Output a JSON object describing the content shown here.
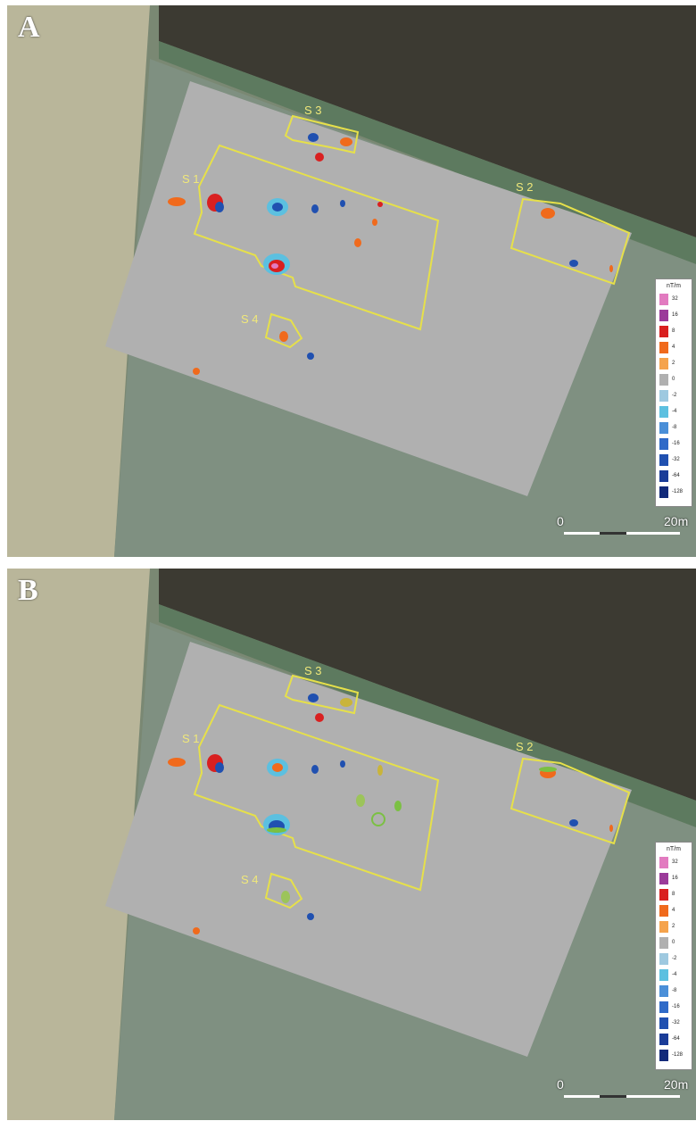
{
  "panels": [
    {
      "id": "A",
      "letter": "A"
    },
    {
      "id": "B",
      "letter": "B"
    }
  ],
  "sites": {
    "s1": "S 1",
    "s2": "S 2",
    "s3": "S 3",
    "s4": "S 4"
  },
  "legend": {
    "unit": "nT/m",
    "entries": [
      {
        "label": "32",
        "color": "#e27bc0"
      },
      {
        "label": "16",
        "color": "#9b3b9a"
      },
      {
        "label": "8",
        "color": "#d92020"
      },
      {
        "label": "4",
        "color": "#f06a1c"
      },
      {
        "label": "2",
        "color": "#f5a34c"
      },
      {
        "label": "0",
        "color": "#b0b0b0"
      },
      {
        "label": "-2",
        "color": "#9ec9e0"
      },
      {
        "label": "-4",
        "color": "#5cc0e0"
      },
      {
        "label": "-8",
        "color": "#4a8fd8"
      },
      {
        "label": "-16",
        "color": "#2f6ac8"
      },
      {
        "label": "-32",
        "color": "#2050b0"
      },
      {
        "label": "-64",
        "color": "#1a3c98"
      },
      {
        "label": "-128",
        "color": "#122a7a"
      }
    ]
  },
  "scale": {
    "start": "0",
    "end": "20m"
  },
  "colors": {
    "survey": "#b0b0b0",
    "outline": "#e6e04a",
    "background": "#6f7c68"
  }
}
